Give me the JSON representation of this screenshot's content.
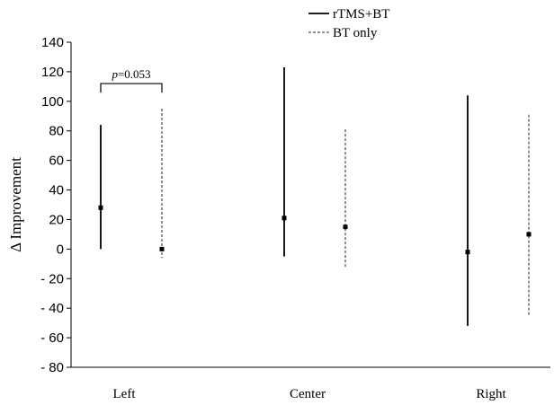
{
  "chart_data": {
    "type": "error-bar",
    "categories": [
      "Left",
      "Center",
      "Right"
    ],
    "ylabel": "Δ Improvement",
    "ylim": [
      -80,
      140
    ],
    "yticks": [
      140,
      120,
      100,
      80,
      60,
      40,
      20,
      0,
      -20,
      -40,
      -60,
      -80
    ],
    "ytick_labels": [
      "140",
      "120",
      "100",
      "80",
      "60",
      "40",
      "20",
      "0",
      "- 20",
      "- 40",
      "- 60",
      "- 80"
    ],
    "grid": false,
    "legend_position": "top-right",
    "series": [
      {
        "name": "rTMS+BT",
        "line_style": "solid",
        "color": "#000000",
        "points": [
          {
            "category": "Left",
            "value": 28,
            "low": 0,
            "high": 84
          },
          {
            "category": "Center",
            "value": 21,
            "low": -5,
            "high": 123
          },
          {
            "category": "Right",
            "value": -2,
            "low": -52,
            "high": 104
          }
        ]
      },
      {
        "name": "BT only",
        "line_style": "dashed",
        "color": "#555555",
        "points": [
          {
            "category": "Left",
            "value": 0,
            "low": -6,
            "high": 95
          },
          {
            "category": "Center",
            "value": 15,
            "low": -13,
            "high": 81
          },
          {
            "category": "Right",
            "value": 10,
            "low": -45,
            "high": 91
          }
        ]
      }
    ],
    "annotations": [
      {
        "category": "Left",
        "text": "p=0.053",
        "italic_part": "p",
        "rest": "=0.053",
        "bracket_y": 112
      }
    ]
  }
}
